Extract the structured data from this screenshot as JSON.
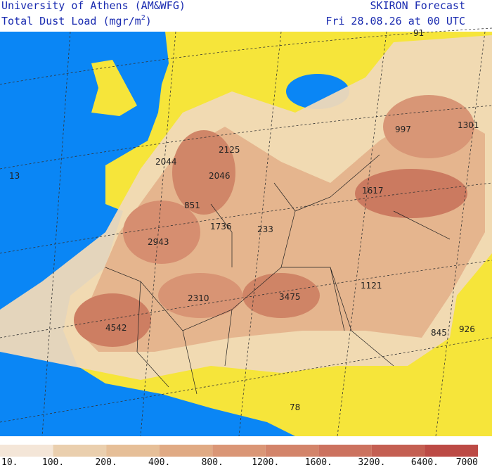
{
  "header": {
    "institution": "University of Athens (AM&WFG)",
    "product_prefix": "Total Dust Load (mgr/m",
    "product_exponent": "2",
    "product_suffix": ")",
    "model": "SKIRON Forecast",
    "valid_time": "Fri 28.08.26 at 00 UTC"
  },
  "map_labels": [
    "91",
    "997",
    "1301",
    "2125",
    "2044",
    "2046",
    "13",
    "1617",
    "851",
    "1736",
    "233",
    "2943",
    "1121",
    "2310",
    "3475",
    "4542",
    "845",
    "926",
    "78"
  ],
  "colorbar": {
    "labels": [
      "10.",
      "100.",
      "200.",
      "400.",
      "800.",
      "1200.",
      "1600.",
      "3200.",
      "6400.",
      "7000"
    ],
    "colors": [
      "#f4e6d8",
      "#eacfae",
      "#e6bf98",
      "#e0aa84",
      "#da9676",
      "#d3846a",
      "#cc725f",
      "#c45f52",
      "#bc4a45"
    ]
  }
}
